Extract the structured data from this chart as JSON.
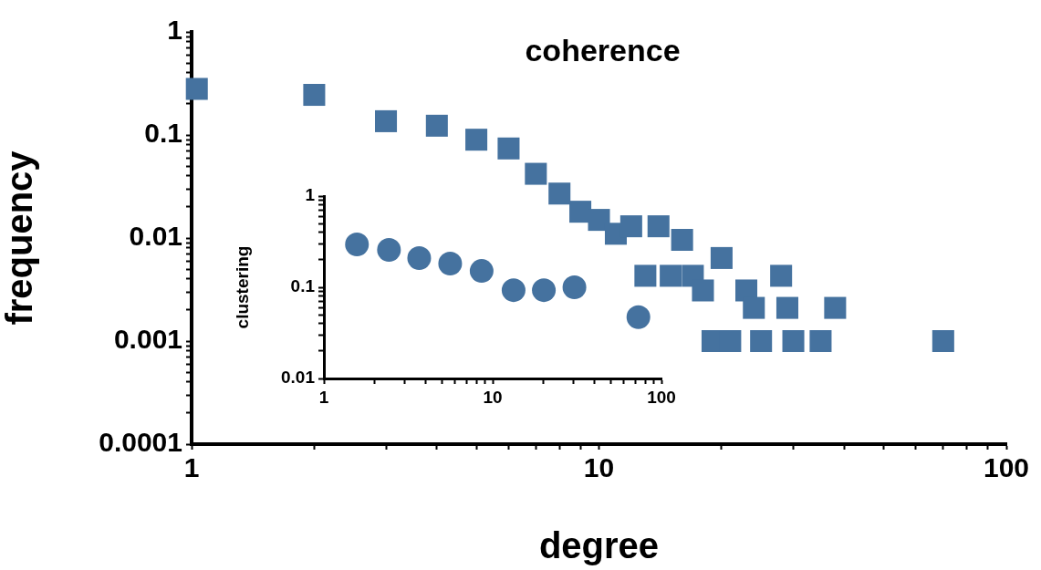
{
  "chart_data": [
    {
      "type": "scatter",
      "title": "coherence",
      "xlabel": "degree",
      "ylabel": "frequency",
      "log": "xy",
      "grid": false,
      "legend": false,
      "marker": "square",
      "xlim": [
        1,
        100
      ],
      "ylim": [
        0.0001,
        1
      ],
      "xticks": [
        1,
        {
          "value": 2,
          "label": null
        },
        {
          "value": 3,
          "label": null
        },
        {
          "value": 4,
          "label": null
        },
        {
          "value": 5,
          "label": null
        },
        {
          "value": 6,
          "label": null
        },
        {
          "value": 7,
          "label": null
        },
        {
          "value": 8,
          "label": null
        },
        {
          "value": 9,
          "label": null
        },
        10,
        {
          "value": 20,
          "label": null
        },
        {
          "value": 30,
          "label": null
        },
        {
          "value": 40,
          "label": null
        },
        {
          "value": 50,
          "label": null
        },
        {
          "value": 60,
          "label": null
        },
        {
          "value": 70,
          "label": null
        },
        {
          "value": 80,
          "label": null
        },
        {
          "value": 90,
          "label": null
        },
        100
      ],
      "yticks": [
        0.0001,
        {
          "value": 0.0002,
          "label": null
        },
        {
          "value": 0.0003,
          "label": null
        },
        {
          "value": 0.0004,
          "label": null
        },
        {
          "value": 0.0005,
          "label": null
        },
        {
          "value": 0.0006,
          "label": null
        },
        {
          "value": 0.0007,
          "label": null
        },
        {
          "value": 0.0008,
          "label": null
        },
        {
          "value": 0.0009,
          "label": null
        },
        0.001,
        {
          "value": 0.002,
          "label": null
        },
        {
          "value": 0.003,
          "label": null
        },
        {
          "value": 0.004,
          "label": null
        },
        {
          "value": 0.005,
          "label": null
        },
        {
          "value": 0.006,
          "label": null
        },
        {
          "value": 0.007,
          "label": null
        },
        {
          "value": 0.008,
          "label": null
        },
        {
          "value": 0.009,
          "label": null
        },
        0.01,
        {
          "value": 0.02,
          "label": null
        },
        {
          "value": 0.03,
          "label": null
        },
        {
          "value": 0.04,
          "label": null
        },
        {
          "value": 0.05,
          "label": null
        },
        {
          "value": 0.06,
          "label": null
        },
        {
          "value": 0.07,
          "label": null
        },
        {
          "value": 0.08,
          "label": null
        },
        {
          "value": 0.09,
          "label": null
        },
        0.1,
        {
          "value": 0.2,
          "label": null
        },
        {
          "value": 0.3,
          "label": null
        },
        {
          "value": 0.4,
          "label": null
        },
        {
          "value": 0.5,
          "label": null
        },
        {
          "value": 0.6,
          "label": null
        },
        {
          "value": 0.7,
          "label": null
        },
        {
          "value": 0.8,
          "label": null
        },
        {
          "value": 0.9,
          "label": null
        },
        1
      ],
      "series": [
        {
          "color": "#45729f",
          "x": [
            1.03,
            2,
            3,
            4,
            5,
            6,
            7,
            8,
            9,
            10,
            11,
            12,
            14,
            16,
            20,
            13,
            15,
            17,
            18,
            23,
            28,
            24,
            29,
            38,
            19,
            21,
            25,
            30,
            35,
            70
          ],
          "values": [
            0.28,
            0.245,
            0.136,
            0.123,
            0.09,
            0.074,
            0.042,
            0.027,
            0.018,
            0.015,
            0.011,
            0.013,
            0.013,
            0.0096,
            0.0064,
            0.0043,
            0.0043,
            0.0043,
            0.0031,
            0.0031,
            0.0043,
            0.0021,
            0.0021,
            0.0021,
            0.001,
            0.001,
            0.001,
            0.001,
            0.001,
            0.001
          ]
        }
      ]
    },
    {
      "type": "scatter",
      "ylabel": "clustering",
      "log": "xy",
      "grid": false,
      "legend": false,
      "marker": "circle",
      "xlim": [
        1,
        100
      ],
      "ylim": [
        0.01,
        1
      ],
      "xticks": [
        1,
        {
          "value": 2,
          "label": null
        },
        {
          "value": 3,
          "label": null
        },
        {
          "value": 4,
          "label": null
        },
        {
          "value": 5,
          "label": null
        },
        {
          "value": 6,
          "label": null
        },
        {
          "value": 7,
          "label": null
        },
        {
          "value": 8,
          "label": null
        },
        {
          "value": 9,
          "label": null
        },
        10,
        {
          "value": 20,
          "label": null
        },
        {
          "value": 30,
          "label": null
        },
        {
          "value": 40,
          "label": null
        },
        {
          "value": 50,
          "label": null
        },
        {
          "value": 60,
          "label": null
        },
        {
          "value": 70,
          "label": null
        },
        {
          "value": 80,
          "label": null
        },
        {
          "value": 90,
          "label": null
        },
        100
      ],
      "yticks": [
        0.01,
        {
          "value": 0.02,
          "label": null
        },
        {
          "value": 0.03,
          "label": null
        },
        {
          "value": 0.04,
          "label": null
        },
        {
          "value": 0.05,
          "label": null
        },
        {
          "value": 0.06,
          "label": null
        },
        {
          "value": 0.07,
          "label": null
        },
        {
          "value": 0.08,
          "label": null
        },
        {
          "value": 0.09,
          "label": null
        },
        0.1,
        {
          "value": 0.2,
          "label": null
        },
        {
          "value": 0.3,
          "label": null
        },
        {
          "value": 0.4,
          "label": null
        },
        {
          "value": 0.5,
          "label": null
        },
        {
          "value": 0.6,
          "label": null
        },
        {
          "value": 0.7,
          "label": null
        },
        {
          "value": 0.8,
          "label": null
        },
        {
          "value": 0.9,
          "label": null
        },
        1
      ],
      "series": [
        {
          "color": "#45729f",
          "x": [
            1.57,
            2.43,
            3.67,
            5.6,
            8.6,
            13.3,
            20.1,
            30.5,
            73
          ],
          "values": [
            0.295,
            0.257,
            0.209,
            0.182,
            0.151,
            0.093,
            0.093,
            0.1,
            0.047
          ]
        }
      ]
    }
  ]
}
